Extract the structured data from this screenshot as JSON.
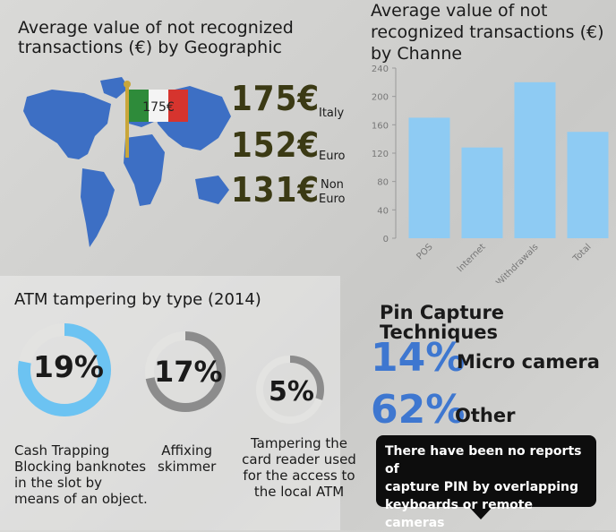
{
  "geo": {
    "title_line1": "Average value of not recognized",
    "title_line2": "transactions (€) by Geographic",
    "flag_label": "175€",
    "rows": [
      {
        "value": "175€",
        "label": "Italy"
      },
      {
        "value": "152€",
        "label": "Euro"
      },
      {
        "value": "131€",
        "label_line1": "Non",
        "label_line2": "Euro"
      }
    ],
    "colors": {
      "map": "#3d6fc4",
      "value": "#3b3a14",
      "flag_green": "#2e8b3a",
      "flag_red": "#d6342e"
    }
  },
  "channel": {
    "title_line1": "Average value of not",
    "title_line2": "recognized transactions (€)",
    "title_line3": "by Channe"
  },
  "chart_data": {
    "type": "bar",
    "categories": [
      "POS",
      "Internet",
      "Withdrawals",
      "Total"
    ],
    "values": [
      170,
      128,
      220,
      150
    ],
    "ylim": [
      0,
      240
    ],
    "yticks": [
      0,
      40,
      80,
      120,
      160,
      200,
      240
    ],
    "grid": false,
    "bar_color": "#8ecbf3"
  },
  "atm": {
    "title": "ATM tampering by type (2014)",
    "items": [
      {
        "pct": "19%",
        "value": 19,
        "color": "#6cc3f2",
        "caption": [
          "Cash Trapping",
          "Blocking banknotes",
          "in the slot by",
          "means of an object."
        ]
      },
      {
        "pct": "17%",
        "value": 17,
        "color": "#8c8c8c",
        "caption": [
          "Affixing",
          "skimmer"
        ]
      },
      {
        "pct": "5%",
        "value": 5,
        "color": "#8c8c8c",
        "caption": [
          "Tampering the",
          "card reader used",
          "for the access to",
          "the local ATM"
        ]
      }
    ]
  },
  "pin": {
    "title": "Pin Capture Techniques",
    "rows": [
      {
        "pct": "14%",
        "label": "Micro camera"
      },
      {
        "pct": "62%",
        "label": "Other"
      }
    ],
    "note": [
      "There have been no reports of",
      "capture PIN by overlapping",
      "keyboards or remote cameras"
    ],
    "accent": "#3e77d0"
  }
}
